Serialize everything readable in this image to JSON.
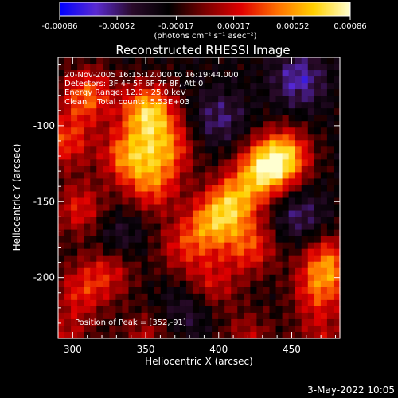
{
  "colorbar": {
    "ticks": [
      "-0.00086",
      "-0.00052",
      "-0.00017",
      "0.00017",
      "0.00052",
      "0.00086"
    ],
    "tick_values": [
      -0.00086,
      -0.00052,
      -0.00017,
      0.00017,
      0.00052,
      0.00086
    ],
    "range": [
      -0.00086,
      0.00086
    ],
    "unit_label": "(photons cm⁻² s⁻¹ asec⁻²)",
    "colors": [
      "#0000ff",
      "#5a2ad0",
      "#2a0a2a",
      "#000000",
      "#7a0000",
      "#e00000",
      "#ff7000",
      "#ffd000",
      "#ffffd0"
    ]
  },
  "chart_data": {
    "type": "heatmap",
    "title": "Reconstructed RHESSI Image",
    "xlabel": "Heliocentric X (arcsec)",
    "ylabel": "Heliocentric Y (arcsec)",
    "xlim": [
      290,
      483
    ],
    "ylim": [
      -240,
      -55
    ],
    "xticks": [
      "300",
      "350",
      "400",
      "450"
    ],
    "xtick_values": [
      300,
      350,
      400,
      450
    ],
    "yticks": [
      "-100",
      "-150",
      "-200"
    ],
    "ytick_values": [
      -100,
      -150,
      -200
    ],
    "info_lines": [
      "20-Nov-2005 16:15:12.000 to 16:19:44.000",
      "Detectors: 3F 4F 5F 6F 7F 8F, Att 0",
      "Energy Range: 12.0 - 25.0 keV",
      "Clean    Total counts: 5.53E+03"
    ],
    "peak_label": "Position of Peak = [352,-91]",
    "peak": [
      352,
      -91
    ],
    "sources": [
      {
        "x": 310,
        "y": -80,
        "value": 0.0006
      },
      {
        "x": 295,
        "y": -110,
        "value": 0.0005
      },
      {
        "x": 352,
        "y": -91,
        "value": 0.00086
      },
      {
        "x": 338,
        "y": -120,
        "value": 0.00065
      },
      {
        "x": 365,
        "y": -115,
        "value": 0.00055
      },
      {
        "x": 355,
        "y": -140,
        "value": 0.0005
      },
      {
        "x": 305,
        "y": -155,
        "value": 0.00045
      },
      {
        "x": 325,
        "y": -195,
        "value": 0.00042
      },
      {
        "x": 305,
        "y": -210,
        "value": 0.0004
      },
      {
        "x": 395,
        "y": -165,
        "value": 0.0006
      },
      {
        "x": 410,
        "y": -150,
        "value": 0.00065
      },
      {
        "x": 430,
        "y": -130,
        "value": 0.00075
      },
      {
        "x": 445,
        "y": -120,
        "value": 0.00075
      },
      {
        "x": 422,
        "y": -180,
        "value": 0.0005
      },
      {
        "x": 395,
        "y": -205,
        "value": 0.0004
      },
      {
        "x": 375,
        "y": -180,
        "value": 0.00038
      },
      {
        "x": 475,
        "y": -190,
        "value": 0.0006
      },
      {
        "x": 468,
        "y": -210,
        "value": 0.00045
      },
      {
        "x": 295,
        "y": -240,
        "value": 0.0003
      },
      {
        "x": 350,
        "y": -240,
        "value": 0.00032
      },
      {
        "x": 420,
        "y": -240,
        "value": 0.00032
      },
      {
        "x": 470,
        "y": -240,
        "value": 0.0003
      },
      {
        "x": 400,
        "y": -95,
        "value": -0.0003
      },
      {
        "x": 455,
        "y": -70,
        "value": -0.0004
      },
      {
        "x": 455,
        "y": -160,
        "value": -0.0003
      },
      {
        "x": 380,
        "y": -220,
        "value": -0.00025
      },
      {
        "x": 330,
        "y": -175,
        "value": -0.00025
      }
    ]
  },
  "footer": {
    "date": "3-May-2022 10:05"
  }
}
